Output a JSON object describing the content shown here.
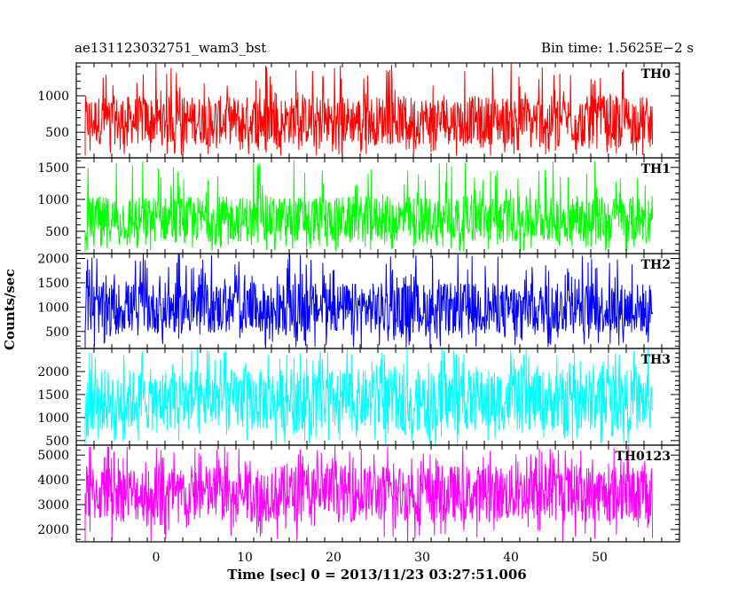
{
  "chart_data": {
    "type": "line",
    "title_left": "ae131123032751_wam3_bst",
    "title_right": "Bin time: 1.5625E−2 s",
    "xlabel": "Time [sec] 0 = 2013/11/23 03:27:51.006",
    "ylabel": "Counts/sec",
    "xlim": [
      -9,
      59
    ],
    "x_range_data": [
      -8,
      56
    ],
    "x_ticks": [
      0,
      10,
      20,
      30,
      40,
      50
    ],
    "x_tick_labels": [
      "0",
      "10",
      "20",
      "30",
      "40",
      "50"
    ],
    "grid": false,
    "panels": [
      {
        "name": "TH0",
        "color": "#ff0000",
        "ylim": [
          150,
          1450
        ],
        "y_ticks": [
          500,
          1000
        ],
        "y_tick_labels": [
          "500",
          "1000"
        ],
        "baseline_low": 180,
        "typ_low": 330,
        "typ_high": 1000,
        "peak_high": 1450
      },
      {
        "name": "TH1",
        "color": "#00ff00",
        "ylim": [
          150,
          1650
        ],
        "y_ticks": [
          500,
          1000,
          1500
        ],
        "y_tick_labels": [
          "500",
          "1000",
          "1500"
        ],
        "baseline_low": 180,
        "typ_low": 330,
        "typ_high": 1050,
        "peak_high": 1650
      },
      {
        "name": "TH2",
        "color": "#0000ff",
        "ylim": [
          150,
          2100
        ],
        "y_ticks": [
          500,
          1000,
          1500,
          2000
        ],
        "y_tick_labels": [
          "500",
          "1000",
          "1500",
          "2000"
        ],
        "baseline_low": 150,
        "typ_low": 450,
        "typ_high": 1500,
        "peak_high": 2100
      },
      {
        "name": "TH3",
        "color": "#00ffff",
        "ylim": [
          400,
          2500
        ],
        "y_ticks": [
          500,
          1000,
          1500,
          2000
        ],
        "y_tick_labels": [
          "500",
          "1000",
          "1500",
          "2000"
        ],
        "baseline_low": 400,
        "typ_low": 700,
        "typ_high": 2050,
        "peak_high": 2500
      },
      {
        "name": "TH0123",
        "color": "#ff00ff",
        "ylim": [
          1500,
          5400
        ],
        "y_ticks": [
          2000,
          3000,
          4000,
          5000
        ],
        "y_tick_labels": [
          "2000",
          "3000",
          "4000",
          "5000"
        ],
        "baseline_low": 1500,
        "typ_low": 2300,
        "typ_high": 4600,
        "peak_high": 5400
      }
    ]
  }
}
